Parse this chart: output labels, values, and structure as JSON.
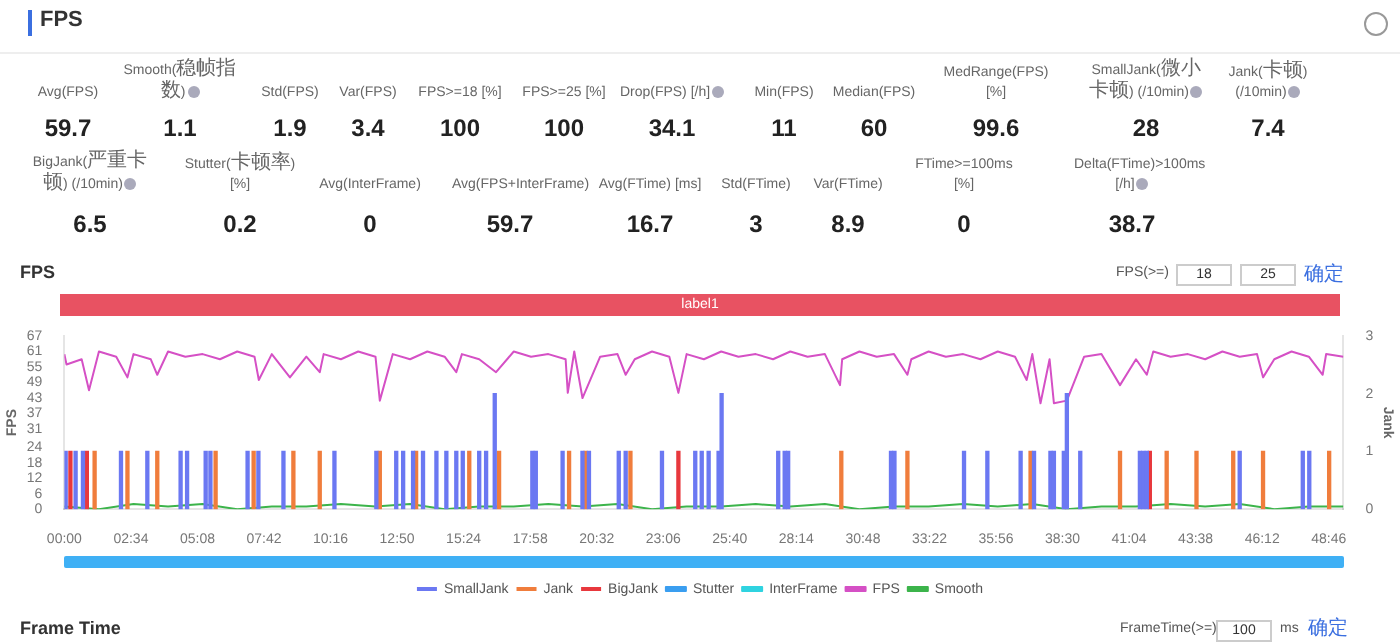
{
  "chart_data": [
    {
      "type": "other",
      "title": "FPS",
      "annotations": [
        "Avg(FPS)",
        "59.7",
        "Smooth(稳帧指数)",
        "1.1",
        "Std(FPS)",
        "1.9",
        "Var(FPS)",
        "3.4",
        "FPS>=18 [%]",
        "100",
        "FPS>=25 [%]",
        "100",
        "Drop(FPS) [/h]",
        "34.1",
        "Min(FPS)",
        "11",
        "Median(FPS)",
        "60",
        "MedRange(FPS)[%]",
        "99.6",
        "SmallJank(微小卡顿) (/10min)",
        "28",
        "Jank(卡顿) (/10min)",
        "7.4",
        "BigJank(严重卡顿) (/10min)",
        "6.5",
        "Stutter(卡顿率) [%]",
        "0.2",
        "Avg(InterFrame)",
        "0",
        "Avg(FPS+InterFrame)",
        "59.7",
        "Avg(FTime) [ms]",
        "16.7",
        "Std(FTime)",
        "3",
        "Var(FTime)",
        "8.9",
        "FTime>=100ms [%]",
        "0",
        "Delta(FTime)>100ms [/h]",
        "38.7"
      ]
    },
    {
      "type": "line",
      "title": "FPS",
      "ylabel": "FPS",
      "y2label": "Jank",
      "annotations": [
        "label1",
        "FPS(>=)",
        "18",
        "25",
        "确定"
      ],
      "xlim": [
        0,
        2960
      ],
      "xticks": [
        {
          "value": 0,
          "label": "00:00"
        },
        {
          "value": 154,
          "label": "02:34"
        },
        {
          "value": 308,
          "label": "05:08"
        },
        {
          "value": 462,
          "label": "07:42"
        },
        {
          "value": 616,
          "label": "10:16"
        },
        {
          "value": 770,
          "label": "12:50"
        },
        {
          "value": 924,
          "label": "15:24"
        },
        {
          "value": 1078,
          "label": "17:58"
        },
        {
          "value": 1232,
          "label": "20:32"
        },
        {
          "value": 1386,
          "label": "23:06"
        },
        {
          "value": 1540,
          "label": "25:40"
        },
        {
          "value": 1694,
          "label": "28:14"
        },
        {
          "value": 1848,
          "label": "30:48"
        },
        {
          "value": 2002,
          "label": "33:22"
        },
        {
          "value": 2156,
          "label": "35:56"
        },
        {
          "value": 2310,
          "label": "38:30"
        },
        {
          "value": 2464,
          "label": "41:04"
        },
        {
          "value": 2618,
          "label": "43:38"
        },
        {
          "value": 2772,
          "label": "46:12"
        },
        {
          "value": 2926,
          "label": "48:46"
        }
      ],
      "ylim": [
        0,
        67
      ],
      "yticks": [
        0,
        6,
        12,
        18,
        24,
        31,
        37,
        43,
        49,
        55,
        61,
        67
      ],
      "y2lim": [
        0,
        3
      ],
      "y2ticks": [
        0,
        1,
        2,
        3
      ],
      "grid": false,
      "legend": "bottom",
      "marker": "none",
      "series": [
        {
          "name": "FPS",
          "type": "line",
          "color": "#d550c5",
          "x": [
            0,
            5,
            40,
            57,
            80,
            120,
            146,
            160,
            200,
            215,
            240,
            280,
            320,
            360,
            400,
            440,
            450,
            480,
            522,
            560,
            591,
            600,
            640,
            680,
            720,
            730,
            760,
            800,
            840,
            880,
            907,
            920,
            960,
            999,
            1040,
            1080,
            1120,
            1160,
            1165,
            1180,
            1199,
            1240,
            1280,
            1299,
            1320,
            1360,
            1400,
            1421,
            1440,
            1480,
            1520,
            1560,
            1600,
            1640,
            1680,
            1720,
            1760,
            1795,
            1800,
            1840,
            1880,
            1920,
            1951,
            1960,
            2000,
            2040,
            2080,
            2120,
            2160,
            2200,
            2227,
            2240,
            2259,
            2280,
            2290,
            2320,
            2360,
            2400,
            2443,
            2480,
            2505,
            2520,
            2560,
            2600,
            2640,
            2680,
            2720,
            2760,
            2774,
            2800,
            2840,
            2880,
            2912,
            2920,
            2960
          ],
          "values": [
            60,
            56,
            58,
            46,
            61,
            59,
            51,
            60,
            58,
            52,
            61,
            59,
            60,
            58,
            61,
            59,
            50,
            60,
            51,
            59,
            53,
            60,
            58,
            61,
            59,
            42,
            60,
            58,
            61,
            59,
            53,
            60,
            58,
            53,
            61,
            59,
            60,
            58,
            45,
            61,
            43,
            59,
            60,
            52,
            58,
            61,
            59,
            45,
            60,
            58,
            61,
            59,
            60,
            58,
            61,
            59,
            60,
            48,
            58,
            61,
            59,
            60,
            52,
            58,
            61,
            59,
            60,
            58,
            61,
            59,
            50,
            60,
            41,
            58,
            41,
            42,
            59,
            60,
            48,
            58,
            52,
            61,
            59,
            60,
            58,
            61,
            59,
            60,
            51,
            58,
            61,
            59,
            52,
            60,
            59
          ]
        },
        {
          "name": "Smooth",
          "type": "line",
          "color": "#3cb44b",
          "x": [
            0,
            80,
            160,
            240,
            320,
            400,
            480,
            560,
            640,
            720,
            800,
            880,
            960,
            1040,
            1120,
            1200,
            1280,
            1360,
            1440,
            1520,
            1600,
            1680,
            1760,
            1840,
            1920,
            2000,
            2080,
            2160,
            2240,
            2320,
            2400,
            2480,
            2560,
            2640,
            2720,
            2800,
            2880,
            2960
          ],
          "values": [
            1,
            0,
            2,
            1,
            2,
            0,
            1,
            1,
            2,
            1,
            2,
            0,
            1,
            1,
            2,
            1,
            2,
            0,
            1,
            1,
            2,
            1,
            2,
            0,
            1,
            1,
            2,
            1,
            2,
            0,
            1,
            1,
            2,
            1,
            2,
            0,
            1,
            1
          ]
        },
        {
          "name": "SmallJank",
          "type": "bar",
          "axis": "y2",
          "color": "#6b78f2",
          "x": [
            3,
            26,
            43,
            131,
            192,
            269,
            284,
            327,
            338,
            424,
            449,
            507,
            625,
            722,
            768,
            784,
            807,
            830,
            861,
            884,
            907,
            922,
            960,
            976,
            996,
            1083,
            1091,
            1153,
            1199,
            1214,
            1283,
            1299,
            1383,
            1460,
            1475,
            1491,
            1514,
            1521,
            1652,
            1667,
            1675,
            1913,
            1921,
            2082,
            2136,
            2213,
            2244,
            2282,
            2290,
            2313,
            2320,
            2351,
            2489,
            2497,
            2505,
            2720,
            2866,
            2881
          ],
          "values": [
            1,
            1,
            1,
            1,
            1,
            1,
            1,
            1,
            1,
            1,
            1,
            1,
            1,
            1,
            1,
            1,
            1,
            1,
            1,
            1,
            1,
            1,
            1,
            1,
            2,
            1,
            1,
            1,
            1,
            1,
            1,
            1,
            1,
            1,
            1,
            1,
            1,
            2,
            1,
            1,
            1,
            1,
            1,
            1,
            1,
            1,
            1,
            1,
            1,
            1,
            2,
            1,
            1,
            1,
            1,
            1,
            1,
            1
          ]
        },
        {
          "name": "Jank",
          "type": "bar",
          "axis": "y2",
          "color": "#f07d3c",
          "x": [
            70,
            146,
            215,
            350,
            438,
            530,
            591,
            730,
            814,
            937,
            1006,
            1168,
            1206,
            1310,
            1798,
            1951,
            2236,
            2443,
            2551,
            2620,
            2705,
            2774,
            2927
          ],
          "values": [
            1,
            1,
            1,
            1,
            1,
            1,
            1,
            1,
            1,
            1,
            1,
            1,
            1,
            1,
            1,
            1,
            1,
            1,
            1,
            1,
            1,
            1,
            1
          ]
        },
        {
          "name": "BigJank",
          "type": "bar",
          "axis": "y2",
          "color": "#e8383d",
          "x": [
            14,
            52,
            1421,
            2512
          ],
          "values": [
            1,
            1,
            1,
            1
          ]
        },
        {
          "name": "Stutter",
          "type": "line",
          "axis": "y2",
          "color": "#3a9ef0"
        },
        {
          "name": "InterFrame",
          "type": "line",
          "axis": "y2",
          "color": "#2fd3e0"
        }
      ]
    },
    {
      "type": "other",
      "title": "Frame Time",
      "annotations": [
        "FrameTime(>=)",
        "100",
        "ms",
        "确定"
      ]
    }
  ]
}
